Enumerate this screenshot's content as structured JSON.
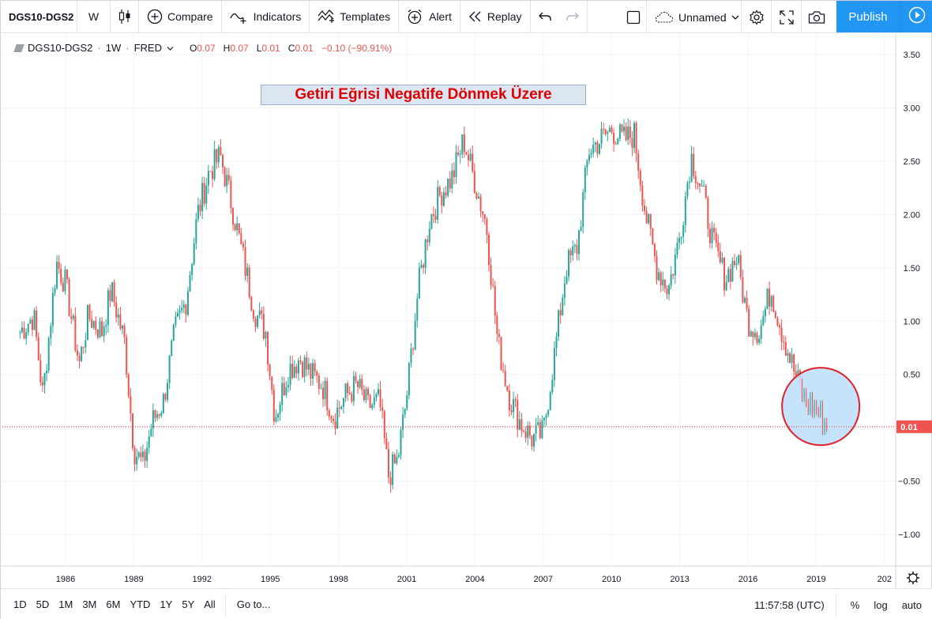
{
  "toolbar": {
    "symbol": "DGS10-DGS2",
    "interval": "W",
    "compare": "Compare",
    "indicators": "Indicators",
    "templates": "Templates",
    "alert": "Alert",
    "replay": "Replay",
    "layout_name": "Unnamed",
    "publish": "Publish"
  },
  "legend": {
    "symbol": "DGS10-DGS2",
    "interval": "1W",
    "source": "FRED",
    "open_label": "O",
    "open": "0.07",
    "high_label": "H",
    "high": "0.07",
    "low_label": "L",
    "low": "0.01",
    "close_label": "C",
    "close": "0.01",
    "change": "−0.10 (−90.91%)"
  },
  "annotation": {
    "text": "Getiri Eğrisi Negatife Dönmek Üzere"
  },
  "colors": {
    "up": "#26a69a",
    "down": "#ef5350",
    "accent": "#2196f3",
    "highlight_fill": "#bfe0fb",
    "highlight_ring": "#e0202a",
    "annotation_text": "#e00000"
  },
  "chart_data": {
    "type": "candlestick",
    "series_name": "DGS10-DGS2",
    "x": [
      1984.0,
      1984.6,
      1985.0,
      1985.6,
      1986.0,
      1986.6,
      1987.0,
      1987.6,
      1988.0,
      1988.6,
      1989.0,
      1989.4,
      1989.8,
      1990.3,
      1990.8,
      1991.3,
      1991.8,
      1992.3,
      1992.8,
      1993.3,
      1993.8,
      1994.3,
      1994.8,
      1995.2,
      1995.8,
      1996.3,
      1996.8,
      1997.3,
      1997.8,
      1998.3,
      1998.8,
      1999.3,
      1999.8,
      2000.2,
      2000.6,
      2001.0,
      2001.5,
      2002.0,
      2002.5,
      2003.0,
      2003.5,
      2004.0,
      2004.5,
      2005.0,
      2005.5,
      2006.0,
      2006.5,
      2007.0,
      2007.5,
      2008.0,
      2008.5,
      2009.0,
      2009.5,
      2010.0,
      2010.5,
      2011.0,
      2011.5,
      2012.0,
      2012.5,
      2013.0,
      2013.5,
      2014.0,
      2014.5,
      2015.0,
      2015.5,
      2016.0,
      2016.5,
      2017.0,
      2017.5,
      2018.0,
      2018.5,
      2019.0,
      2019.5
    ],
    "y": [
      0.9,
      1.05,
      0.3,
      1.55,
      1.35,
      0.6,
      1.05,
      0.9,
      1.3,
      0.8,
      -0.2,
      -0.35,
      0.05,
      0.25,
      0.9,
      1.2,
      2.0,
      2.4,
      2.55,
      2.1,
      1.6,
      1.1,
      0.9,
      0.1,
      0.55,
      0.65,
      0.5,
      0.4,
      0.1,
      0.3,
      0.4,
      0.2,
      0.25,
      -0.45,
      -0.3,
      0.3,
      1.3,
      1.95,
      2.2,
      2.35,
      2.7,
      2.3,
      1.9,
      0.8,
      0.3,
      0.05,
      -0.1,
      -0.05,
      0.7,
      1.5,
      1.7,
      2.6,
      2.7,
      2.8,
      2.7,
      2.75,
      2.0,
      1.5,
      1.3,
      1.8,
      2.55,
      2.2,
      1.7,
      1.4,
      1.6,
      1.0,
      0.9,
      1.3,
      0.9,
      0.55,
      0.25,
      0.18,
      0.01
    ],
    "x_ticks": [
      "1986",
      "1989",
      "1992",
      "1995",
      "1998",
      "2001",
      "2004",
      "2007",
      "2010",
      "2013",
      "2016",
      "2019",
      "202"
    ],
    "y_ticks": [
      "3.50",
      "3.00",
      "2.50",
      "2.00",
      "1.50",
      "1.00",
      "0.50",
      "0.01",
      "−0.50",
      "−1.00"
    ],
    "last_value_label": "0.01",
    "last_value": 0.01,
    "ylim": [
      -1.25,
      3.55
    ],
    "xlim": [
      1983.0,
      2021.3
    ],
    "grid": true
  },
  "bottom": {
    "ranges": [
      "1D",
      "5D",
      "1M",
      "3M",
      "6M",
      "YTD",
      "1Y",
      "5Y",
      "All"
    ],
    "goto": "Go to...",
    "clock": "11:57:58 (UTC)",
    "percent": "%",
    "log": "log",
    "auto": "auto"
  }
}
